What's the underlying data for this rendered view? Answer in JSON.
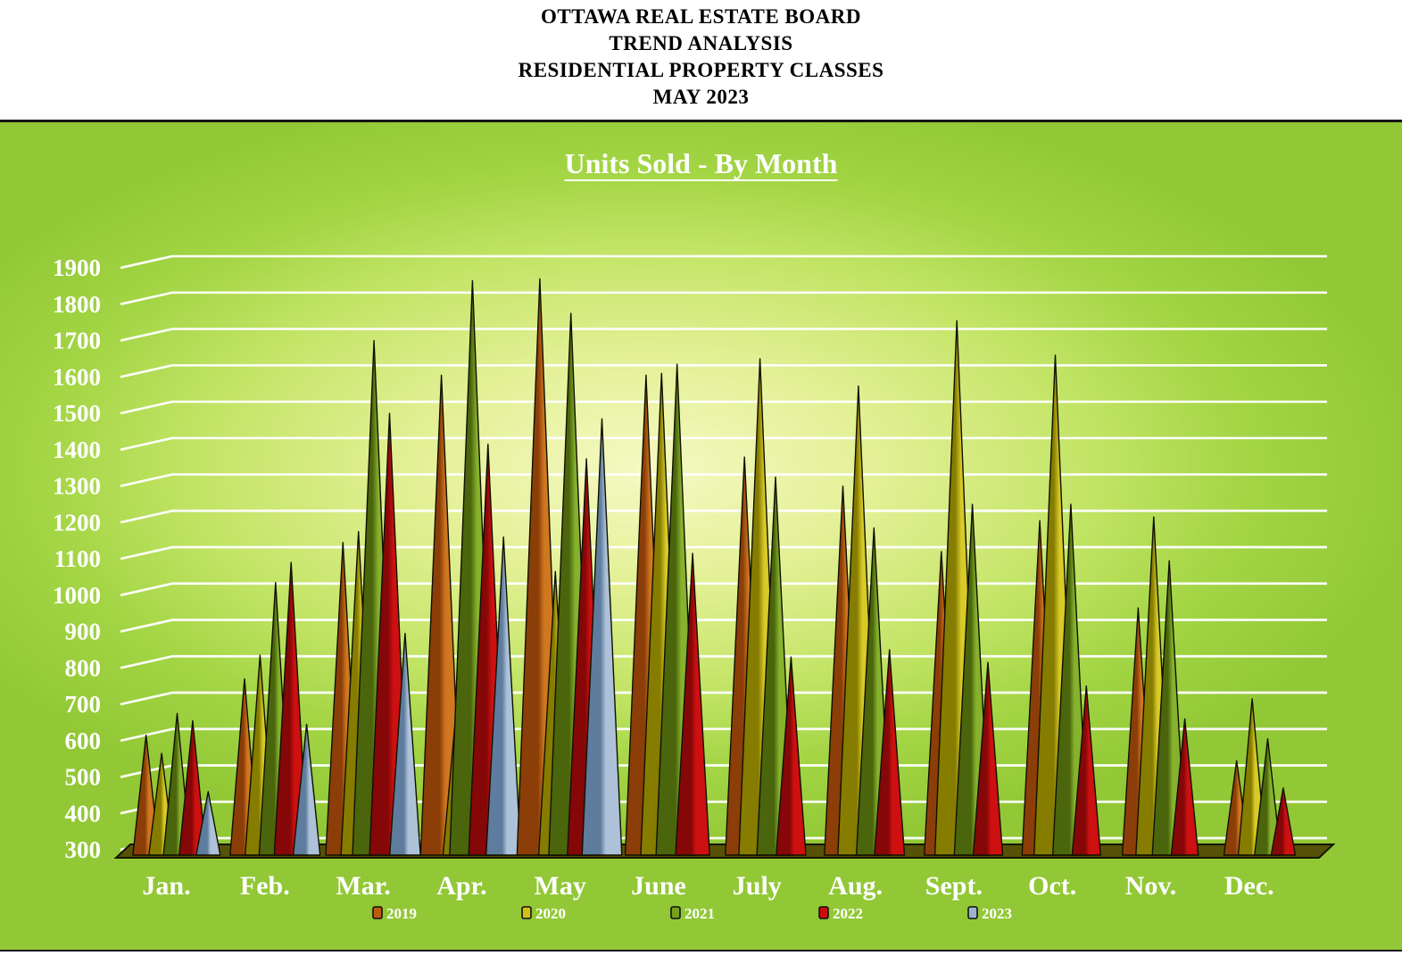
{
  "header": {
    "line1": "OTTAWA REAL ESTATE BOARD",
    "line2": "TREND ANALYSIS",
    "line3": "RESIDENTIAL PROPERTY CLASSES",
    "line4": "MAY 2023"
  },
  "chart_data": {
    "type": "bar",
    "subtype": "3d-spike-cones",
    "title": "Units Sold - By Month",
    "xlabel": "",
    "ylabel": "",
    "ylim": [
      300,
      1900
    ],
    "y_ticks": [
      1900,
      1800,
      1700,
      1600,
      1500,
      1400,
      1300,
      1200,
      1100,
      1000,
      900,
      800,
      700,
      600,
      500,
      400,
      300
    ],
    "grid": true,
    "legend_position": "bottom",
    "background_color": "#92c836",
    "grid_color": "#ffffff",
    "text_color": "#ffffff",
    "floor_color": "#565207",
    "categories": [
      "Jan.",
      "Feb.",
      "Mar.",
      "Apr.",
      "May",
      "June",
      "July",
      "Aug.",
      "Sept.",
      "Oct.",
      "Nov.",
      "Dec."
    ],
    "series": [
      {
        "name": "2019",
        "color": "#bf5b0f",
        "color_dark": "#8c3e08",
        "color_light": "#d07820",
        "values": [
          605,
          760,
          1135,
          1595,
          1860,
          1595,
          1370,
          1290,
          1110,
          1195,
          955,
          535
        ]
      },
      {
        "name": "2020",
        "color": "#d0c01a",
        "color_dark": "#857c00",
        "color_light": "#d8ca28",
        "values": [
          555,
          825,
          1165,
          695,
          1055,
          1600,
          1640,
          1565,
          1745,
          1650,
          1205,
          705
        ]
      },
      {
        "name": "2021",
        "color": "#76a01e",
        "color_dark": "#4a650b",
        "color_light": "#86b22e",
        "values": [
          665,
          1025,
          1690,
          1855,
          1765,
          1625,
          1315,
          1175,
          1240,
          1240,
          1085,
          595
        ]
      },
      {
        "name": "2022",
        "color": "#c90d0d",
        "color_dark": "#850707",
        "color_light": "#ce1010",
        "values": [
          645,
          1080,
          1490,
          1405,
          1365,
          1105,
          820,
          840,
          805,
          740,
          650,
          460
        ]
      },
      {
        "name": "2023",
        "color": "#9db4ce",
        "color_dark": "#5e7c9d",
        "color_light": "#adc2d8",
        "values": [
          450,
          635,
          885,
          1150,
          1475,
          null,
          null,
          null,
          null,
          null,
          null,
          null
        ]
      }
    ]
  }
}
